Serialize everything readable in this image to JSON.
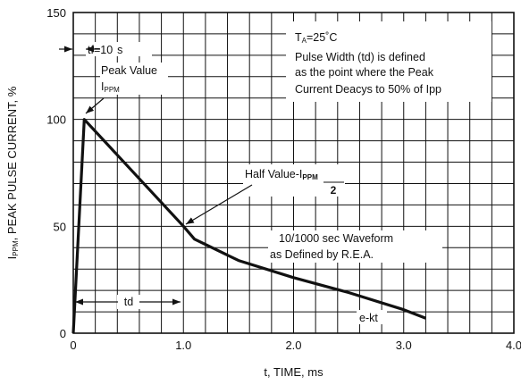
{
  "chart_data": {
    "type": "line",
    "xlabel": "t, TIME, ms",
    "ylabel": "I",
    "ylabel_sub": "PPM",
    "ylabel_rest": ", PEAK PULSE CURRENT, %",
    "xlim": [
      0,
      4.0
    ],
    "ylim": [
      0,
      150
    ],
    "x_ticks": [
      {
        "value": 0,
        "label": "0"
      },
      {
        "value": 1.0,
        "label": "1.0"
      },
      {
        "value": 2.0,
        "label": "2.0"
      },
      {
        "value": 3.0,
        "label": "3.0"
      },
      {
        "value": 4.0,
        "label": "4.0"
      }
    ],
    "y_ticks": [
      {
        "value": 0,
        "label": "0"
      },
      {
        "value": 50,
        "label": "50"
      },
      {
        "value": 100,
        "label": "100"
      },
      {
        "value": 150,
        "label": "150"
      }
    ],
    "x_minor_step": 0.2,
    "y_minor_step": 10,
    "grid": true,
    "series": [
      {
        "x": [
          0,
          0.1,
          1.0,
          1.1,
          1.5,
          2.0,
          2.5,
          3.0,
          3.2
        ],
        "y": [
          0,
          100,
          50,
          44,
          34,
          26,
          19,
          11,
          7
        ]
      }
    ],
    "annotations": {
      "tf": {
        "prefix": "tf=10",
        "unit": "s"
      },
      "peak_value": {
        "line1": "Peak Value",
        "line2": "I",
        "line2_sub": "PPM"
      },
      "conditions": {
        "line1": "T",
        "line1_sub": "A",
        "line1_rest": "=25˚C",
        "line2": "Pulse Width (td) is defined",
        "line3": "as the point where the Peak",
        "line4": "Current Deacys to 50% of Ipp"
      },
      "half_value": {
        "text": "Half Value-I",
        "sub": "PPM",
        "denominator": "2"
      },
      "waveform": {
        "line1": "10/1000  sec Waveform",
        "line2": "as Defined by R.E.A."
      },
      "td": "td",
      "ekt": "e-kt"
    }
  }
}
